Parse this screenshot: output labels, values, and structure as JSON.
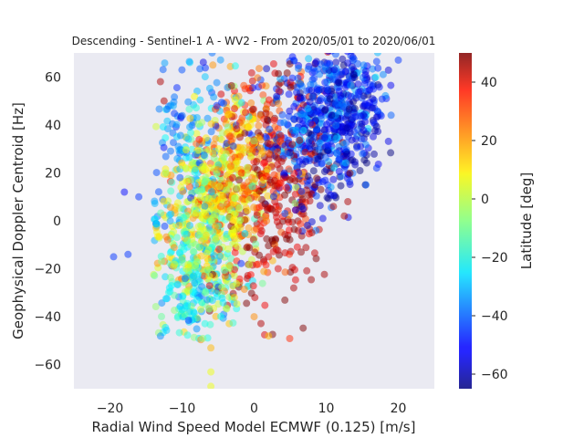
{
  "chart_data": {
    "type": "scatter",
    "title": "Descending - Sentinel-1 A - WV2 - From 2020/05/01 to 2020/06/01",
    "xlabel": "Radial Wind Speed Model ECMWF (0.125) [m/s]",
    "ylabel": "Geophysical Doppler Centroid [Hz]",
    "xlim": [
      -25,
      25
    ],
    "ylim": [
      -70,
      70
    ],
    "x_ticks": [
      -20,
      -10,
      0,
      10,
      20
    ],
    "y_ticks": [
      -60,
      -40,
      -20,
      0,
      20,
      40,
      60
    ],
    "grid": false,
    "background": "#eaeaf2",
    "colormap": "jet",
    "marker_alpha": 0.5,
    "colorbar": {
      "label": "Latitude [deg]",
      "range": [
        -65,
        50
      ],
      "ticks": [
        -60,
        -40,
        -20,
        0,
        20,
        40
      ]
    },
    "clusters": [
      {
        "latitude": 5,
        "x_mean": -6,
        "x_sd": 3.6,
        "y_mean": 5,
        "y_sd": 20,
        "count": 420
      },
      {
        "latitude": -20,
        "x_mean": -9,
        "x_sd": 3.0,
        "y_mean": -12,
        "y_sd": 18,
        "count": 200
      },
      {
        "latitude": 20,
        "x_mean": -2,
        "x_sd": 3.2,
        "y_mean": 22,
        "y_sd": 20,
        "count": 260
      },
      {
        "latitude": 42,
        "x_mean": 3,
        "x_sd": 3.6,
        "y_mean": 12,
        "y_sd": 24,
        "count": 320
      },
      {
        "latitude": -45,
        "x_mean": 10,
        "x_sd": 4.2,
        "y_mean": 45,
        "y_sd": 16,
        "count": 520
      },
      {
        "latitude": -58,
        "x_mean": 12,
        "x_sd": 3.0,
        "y_mean": 38,
        "y_sd": 14,
        "count": 180
      },
      {
        "latitude": -35,
        "x_mean": -9,
        "x_sd": 3.2,
        "y_mean": 32,
        "y_sd": 18,
        "count": 140
      },
      {
        "latitude": -25,
        "x_mean": -7,
        "x_sd": 3.0,
        "y_mean": -30,
        "y_sd": 10,
        "count": 100
      }
    ],
    "outliers": [
      {
        "x": -19.5,
        "y": -15,
        "latitude": -45
      },
      {
        "x": -17.5,
        "y": -14,
        "latitude": -45
      },
      {
        "x": -16,
        "y": 10,
        "latitude": -45
      },
      {
        "x": -13,
        "y": 58,
        "latitude": 45
      },
      {
        "x": -12.5,
        "y": 50,
        "latitude": 45
      },
      {
        "x": -6,
        "y": -63,
        "latitude": 5
      },
      {
        "x": -6,
        "y": -69,
        "latitude": 5
      },
      {
        "x": 2,
        "y": -48,
        "latitude": 15
      },
      {
        "x": 0,
        "y": -40,
        "latitude": 20
      },
      {
        "x": 13,
        "y": 8,
        "latitude": 45
      },
      {
        "x": 8,
        "y": -5,
        "latitude": 45
      },
      {
        "x": 12.5,
        "y": 2,
        "latitude": 45
      },
      {
        "x": 5.5,
        "y": -28,
        "latitude": 45
      },
      {
        "x": 15.5,
        "y": 15,
        "latitude": -40
      },
      {
        "x": 17,
        "y": 22,
        "latitude": -45
      },
      {
        "x": 20,
        "y": 67,
        "latitude": -45
      },
      {
        "x": 19,
        "y": 44,
        "latitude": -40
      },
      {
        "x": -6,
        "y": -53,
        "latitude": 15
      },
      {
        "x": 2,
        "y": -15,
        "latitude": 40
      },
      {
        "x": 11,
        "y": 6,
        "latitude": 45
      },
      {
        "x": -18,
        "y": 12,
        "latitude": -50
      }
    ]
  }
}
